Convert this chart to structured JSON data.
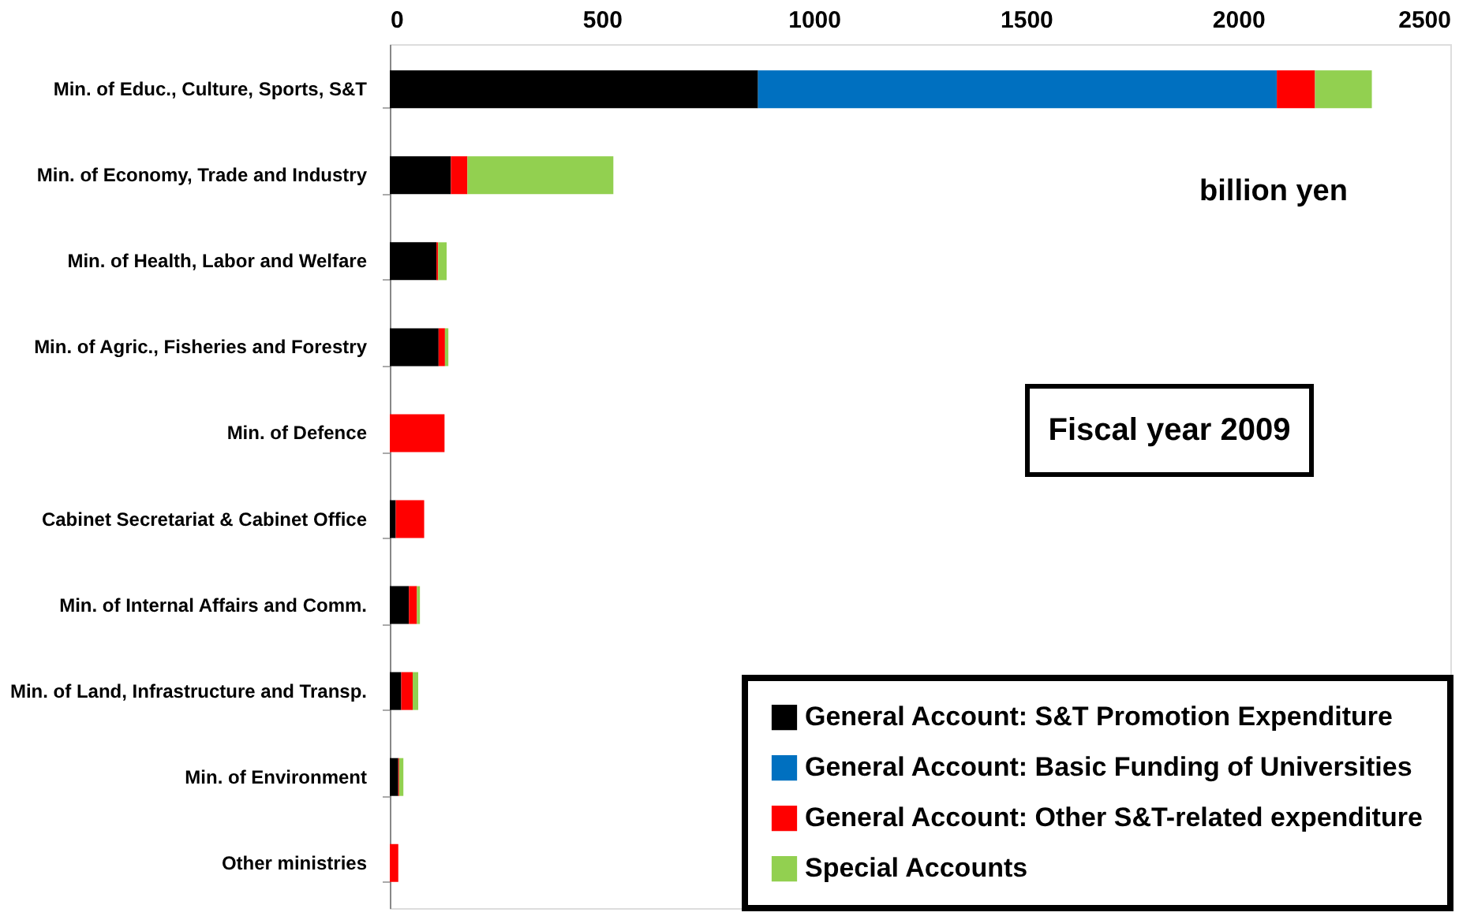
{
  "chart_data": {
    "type": "bar",
    "orientation": "horizontal",
    "stacked": true,
    "categories": [
      "Min. of Educ., Culture, Sports, S&T",
      "Min. of Economy, Trade and Industry",
      "Min. of Health, Labor and Welfare",
      "Min. of Agric., Fisheries and Forestry",
      "Min. of Defence",
      "Cabinet Secretariat & Cabinet Office",
      "Min. of Internal Affairs and Comm.",
      "Min. of Land, Infrastructure and Transp.",
      "Min. of Environment",
      "Other ministries"
    ],
    "series": [
      {
        "name": "General Account: S&T Promotion Expenditure",
        "color": "#000000",
        "values": [
          868,
          144,
          110,
          115,
          0,
          14,
          45,
          27,
          20,
          0
        ]
      },
      {
        "name": "General Account: Basic Funding of Universities",
        "color": "#0070c0",
        "values": [
          1223,
          0,
          0,
          0,
          0,
          0,
          0,
          0,
          0,
          0
        ]
      },
      {
        "name": "General Account: Other S&T-related expenditure",
        "color": "#ff0000",
        "values": [
          90,
          39,
          4,
          15,
          129,
          67,
          19,
          27,
          2,
          20
        ]
      },
      {
        "name": "Special Accounts",
        "color": "#92d050",
        "values": [
          134,
          344,
          20,
          8,
          0,
          0,
          7,
          13,
          10,
          0
        ]
      }
    ],
    "xlim": [
      0,
      2500
    ],
    "xticks": [
      0,
      500,
      1000,
      1500,
      2000,
      2500
    ],
    "grid": false,
    "legend": "bottom right",
    "annotations": [
      "billion yen",
      "Fiscal year 2009"
    ]
  }
}
